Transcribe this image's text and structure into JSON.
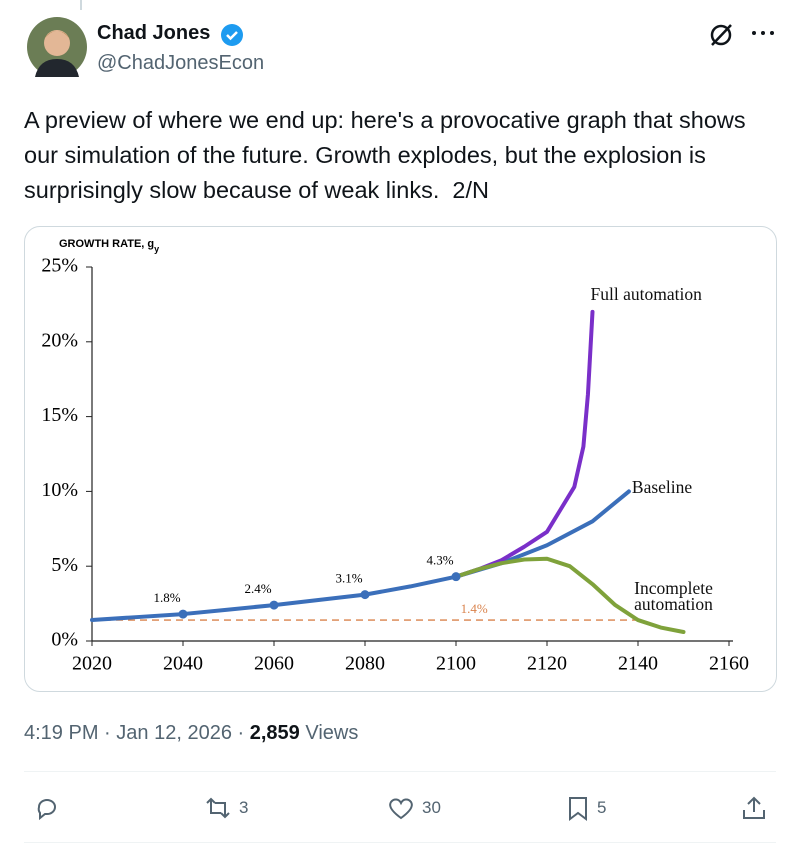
{
  "author": {
    "name": "Chad Jones",
    "handle": "@ChadJonesEcon"
  },
  "text": "A preview of where we end up: here's a provocative graph that shows our simulation of the future. Growth explodes, but the explosion is surprisingly slow because of weak links.  2/N",
  "chart_data": {
    "type": "line",
    "y_label": "GROWTH RATE, g",
    "y_label_sub": "y",
    "xlim": [
      2020,
      2160
    ],
    "xticks": [
      2020,
      2040,
      2060,
      2080,
      2100,
      2120,
      2140,
      2160
    ],
    "ylim": [
      0,
      25
    ],
    "yticks": [
      {
        "value": 0,
        "label": "0%"
      },
      {
        "value": 5,
        "label": "5%"
      },
      {
        "value": 10,
        "label": "10%"
      },
      {
        "value": 15,
        "label": "15%"
      },
      {
        "value": 20,
        "label": "20%"
      },
      {
        "value": 25,
        "label": "25%"
      }
    ],
    "grid": false,
    "series": [
      {
        "name": "Baseline",
        "color": "#3b6fba",
        "x": [
          2020,
          2030,
          2040,
          2050,
          2060,
          2070,
          2080,
          2090,
          2100,
          2110,
          2120,
          2130,
          2138
        ],
        "values": [
          1.4,
          1.6,
          1.8,
          2.1,
          2.4,
          2.75,
          3.1,
          3.65,
          4.3,
          5.2,
          6.4,
          8.0,
          10.0
        ],
        "value_labels": [
          null,
          null,
          "1.8%",
          null,
          "2.4%",
          null,
          "3.1%",
          null,
          "4.3%",
          null,
          null,
          null,
          null
        ]
      },
      {
        "name": "Full automation",
        "color": "#7a2fc9",
        "x": [
          2100,
          2105,
          2110,
          2115,
          2120,
          2123,
          2126,
          2128,
          2129,
          2130
        ],
        "values": [
          4.3,
          4.8,
          5.4,
          6.3,
          7.3,
          8.8,
          10.3,
          13,
          16.5,
          22
        ]
      },
      {
        "name": "Incomplete automation",
        "color": "#7fa23b",
        "x": [
          2100,
          2105,
          2110,
          2115,
          2120,
          2125,
          2130,
          2135,
          2140,
          2145,
          2150
        ],
        "values": [
          4.3,
          4.8,
          5.2,
          5.45,
          5.5,
          5.0,
          3.8,
          2.4,
          1.4,
          0.9,
          0.6
        ]
      }
    ],
    "ref_line": {
      "value": 1.4,
      "label": "1.4%",
      "color": "#d9824b",
      "x": [
        2020,
        2140
      ]
    }
  },
  "meta": {
    "time": "4:19 PM",
    "separator": "·",
    "date": "Jan 12, 2026",
    "views": "2,859",
    "views_label": "Views"
  },
  "actions": {
    "retweets": 3,
    "likes": 30,
    "bookmarks": 5
  }
}
